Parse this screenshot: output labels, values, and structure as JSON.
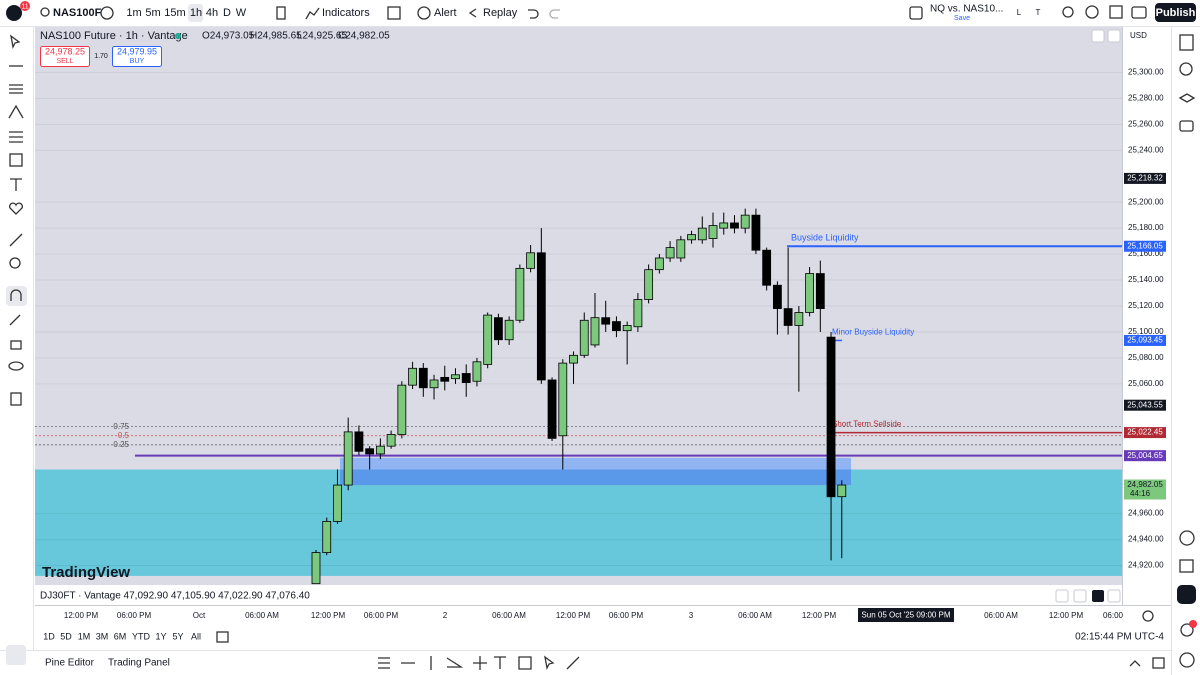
{
  "toolbar": {
    "symbol": "NAS100F",
    "intervals": [
      "1m",
      "5m",
      "15m",
      "1h",
      "4h",
      "D",
      "W"
    ],
    "indicators": "Indicators",
    "alert": "Alert",
    "replay": "Replay",
    "layout_name": "NQ vs. NAS10...",
    "save": "Save",
    "l": "L",
    "t": "T",
    "publish": "Publish",
    "badge": "11"
  },
  "legend": {
    "title": "NAS100 Future · 1h · Vantage",
    "open": "O24,973.05",
    "high": "H24,985.65",
    "low": "L24,925.65",
    "close": "C24,982.05",
    "sell_price": "24,978.25",
    "sell": "SELL",
    "spread": "1.70",
    "buy_price": "24,979.95",
    "buy": "BUY"
  },
  "currency": "USD",
  "chart_data": {
    "type": "candlestick",
    "up_color": "#7cc87c",
    "down_color": "#000000",
    "categories": [
      null,
      null,
      null,
      null,
      null,
      null,
      null,
      null,
      null,
      null,
      null,
      null,
      null,
      null,
      null,
      null,
      null,
      null,
      null,
      null,
      null,
      null,
      null,
      null,
      null,
      null,
      null,
      null,
      null,
      null,
      null,
      null,
      null,
      null,
      null,
      null,
      null,
      null,
      null,
      null,
      null,
      null,
      null,
      null,
      null,
      null,
      null,
      null,
      null,
      null
    ],
    "open": [
      24906,
      24930,
      24954,
      24982,
      25023,
      25010,
      25006,
      25012,
      25021,
      25059,
      25072,
      25057,
      25065,
      25064,
      25068,
      25062,
      25075,
      25111,
      25094,
      25109,
      25149,
      25161,
      25063,
      25020,
      25076,
      25082,
      25090,
      25111,
      25108,
      25101,
      25104,
      25125,
      25148,
      25157,
      25157,
      25171,
      25171,
      25172,
      25180,
      25184,
      25180,
      25190,
      25163,
      25136,
      25118,
      25105,
      25115,
      25145,
      25096,
      24973.05
    ],
    "high": [
      24932,
      24957,
      24994,
      25034,
      25028,
      25012,
      25018,
      25024,
      25062,
      25077,
      25076,
      25067,
      25074,
      25072,
      25075,
      25080,
      25115,
      25114,
      25112,
      25152,
      25167,
      25180,
      25065,
      25079,
      25085,
      25115,
      25130,
      25124,
      25112,
      25108,
      25130,
      25152,
      25160,
      25170,
      25174,
      25178,
      25189,
      25192,
      25192,
      25190,
      25195,
      25195,
      25165,
      25139,
      25165,
      25120,
      25150,
      25155,
      25100,
      24985.65
    ],
    "low": [
      24906,
      24928,
      24952,
      24978,
      25005,
      24994,
      25002,
      25010,
      25018,
      25056,
      25050,
      25048,
      25055,
      25060,
      25050,
      25058,
      25072,
      25090,
      25090,
      25107,
      25146,
      25060,
      25016,
      24994,
      25060,
      25080,
      25088,
      25100,
      25096,
      25075,
      25100,
      25122,
      25145,
      25154,
      25154,
      25168,
      25168,
      25165,
      25175,
      25176,
      25176,
      25160,
      25132,
      25098,
      25098,
      25054,
      25112,
      25100,
      24924,
      24925.65
    ],
    "close": [
      24930,
      24954,
      24982,
      25023,
      25008,
      25006,
      25012,
      25021,
      25059,
      25072,
      25057,
      25063,
      25062,
      25067,
      25061,
      25077,
      25113,
      25094,
      25109,
      25149,
      25161,
      25063,
      25018,
      25076,
      25082,
      25109,
      25111,
      25106,
      25101,
      25105,
      25125,
      25148,
      25157,
      25165,
      25171,
      25175,
      25180,
      25182,
      25184,
      25180,
      25190,
      25163,
      25136,
      25118,
      25105,
      25115,
      25145,
      25118,
      24973,
      24982.05
    ],
    "ylim": [
      24905,
      25335
    ],
    "yticks": [
      {
        "value": 24920,
        "label": "24,920.00"
      },
      {
        "value": 24940,
        "label": "24,940.00"
      },
      {
        "value": 24960,
        "label": "24,960.00"
      },
      {
        "value": 25060,
        "label": "25,060.00"
      },
      {
        "value": 25080,
        "label": "25,080.00"
      },
      {
        "value": 25100,
        "label": "25,100.00"
      },
      {
        "value": 25120,
        "label": "25,120.00"
      },
      {
        "value": 25140,
        "label": "25,140.00"
      },
      {
        "value": 25160,
        "label": "25,160.00"
      },
      {
        "value": 25180,
        "label": "25,180.00"
      },
      {
        "value": 25200,
        "label": "25,200.00"
      },
      {
        "value": 25240,
        "label": "25,240.00"
      },
      {
        "value": 25260,
        "label": "25,260.00"
      },
      {
        "value": 25280,
        "label": "25,280.00"
      },
      {
        "value": 25300,
        "label": "25,300.00"
      }
    ],
    "levels": [
      {
        "value": 25218.32,
        "label": "25,218.32",
        "color": "#131722"
      },
      {
        "value": 25166.05,
        "label": "25,166.05",
        "color": "#2962ff",
        "text": "Buyside Liquidity"
      },
      {
        "value": 25093.45,
        "label": "25,093.45",
        "color": "#2962ff",
        "text": "Minor Buyside Liquidity"
      },
      {
        "value": 25043.55,
        "label": "25,043.55",
        "color": "#131722"
      },
      {
        "value": 25022.45,
        "label": "25,022.45",
        "color": "#b22833",
        "text": "Short Term Sellside"
      },
      {
        "value": 25004.65,
        "label": "25,004.65",
        "color": "#673ab7"
      },
      {
        "value": 24982.05,
        "label": "24,982.05",
        "color": "#7cc87c",
        "timer": "44:16"
      }
    ],
    "zones": [
      {
        "top": 24994,
        "bottom": 24912,
        "color": "#66c8da"
      },
      {
        "top": 25003,
        "bottom": 24982,
        "color": "#91b4f2"
      },
      {
        "top": 24994,
        "bottom": 24982,
        "color": "#5a98ea"
      }
    ],
    "fib": {
      "levels": [
        0.75,
        0.5,
        0.25
      ],
      "prices": [
        25027,
        25020,
        25013
      ],
      "colors": [
        "#555555",
        "#d05050",
        "#555555"
      ]
    }
  },
  "compare": "DJ30FT · Vantage  47,092.90  47,105.90  47,022.90  47,076.40",
  "watermark": "TradingView",
  "time_axis": [
    "12:00 PM",
    "06:00 PM",
    "Oct",
    "06:00 AM",
    "12:00 PM",
    "06:00 PM",
    "2",
    "06:00 AM",
    "12:00 PM",
    "06:00 PM",
    "3",
    "06:00 AM",
    "12:00 PM",
    "06:00 AM",
    "12:00 PM",
    "06:00"
  ],
  "crosshair_time": "Sun 05 Oct '25   09:00 PM",
  "ranges": [
    "1D",
    "5D",
    "1M",
    "3M",
    "6M",
    "YTD",
    "1Y",
    "5Y",
    "All"
  ],
  "clock": "02:15:44 PM UTC-4",
  "bottom": {
    "pine": "Pine Editor",
    "trading": "Trading Panel"
  }
}
